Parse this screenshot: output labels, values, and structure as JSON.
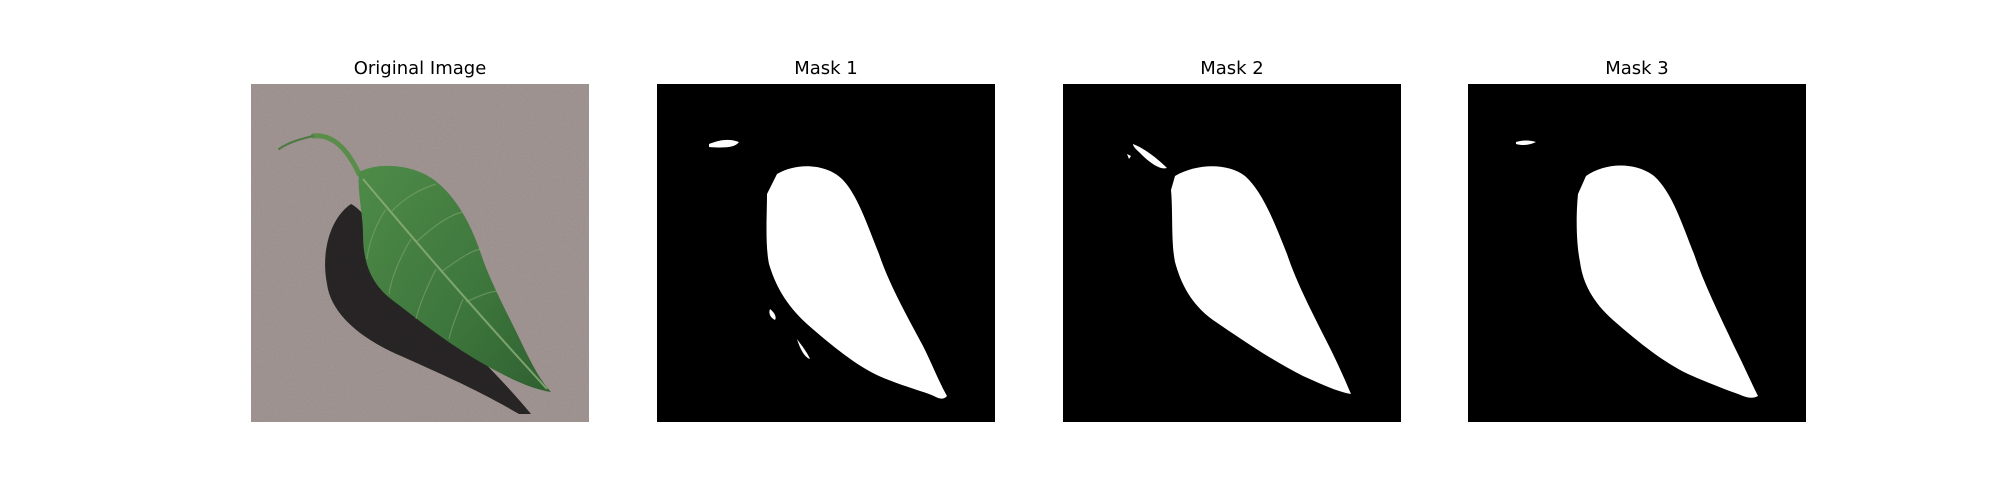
{
  "figure": {
    "panels": [
      {
        "title": "Original Image",
        "content": "leaf-photo"
      },
      {
        "title": "Mask 1",
        "content": "binary-mask"
      },
      {
        "title": "Mask 2",
        "content": "binary-mask"
      },
      {
        "title": "Mask 3",
        "content": "binary-mask"
      }
    ],
    "colors": {
      "background": "#ffffff",
      "mask_background": "#000000",
      "mask_foreground": "#ffffff",
      "surface": "#a49896",
      "leaf": "#3f7a3e",
      "leaf_dark": "#2d5e2f",
      "shadow": "#1c1a1b"
    }
  }
}
